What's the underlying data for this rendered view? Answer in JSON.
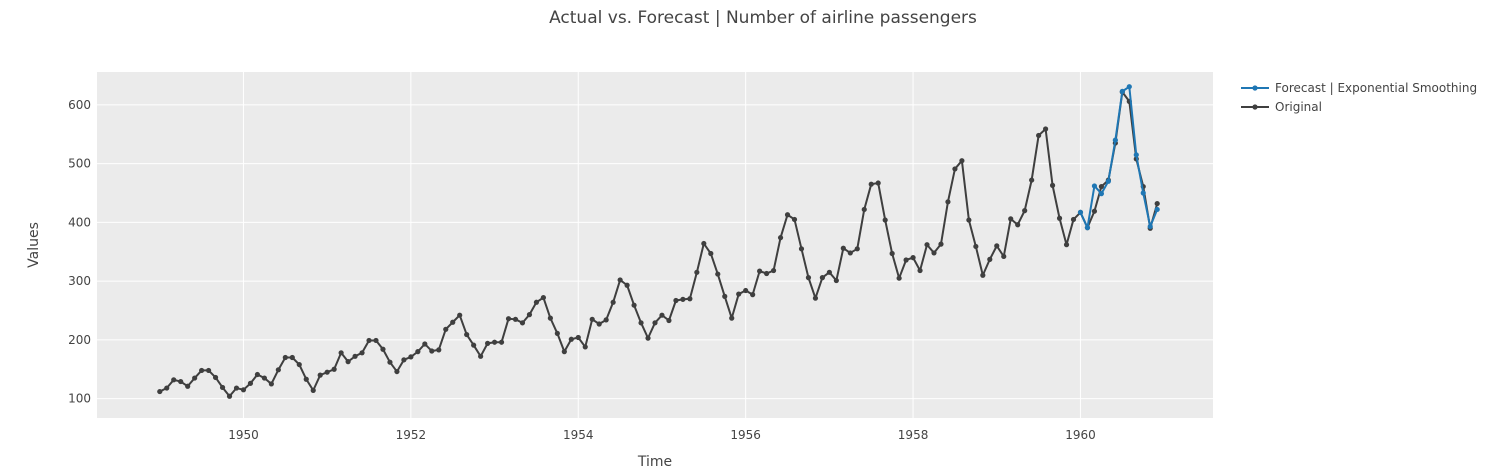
{
  "chart_data": {
    "type": "line",
    "title": "Actual vs. Forecast | Number of airline passengers",
    "xlabel": "Time",
    "ylabel": "Values",
    "x_start": "1949-01",
    "x_ticks": [
      "1950",
      "1952",
      "1954",
      "1956",
      "1958",
      "1960"
    ],
    "y_ticks": [
      "100",
      "200",
      "300",
      "400",
      "500",
      "600"
    ],
    "xlim": [
      "1948-04",
      "1961-08"
    ],
    "ylim": [
      67,
      656
    ],
    "grid": true,
    "legend_position": "top-right, outside plot",
    "plot_background": "#ebebeb",
    "series": [
      {
        "name": "Forecast | Exponential Smoothing",
        "color": "#1f77b4",
        "x": [
          "1960-01",
          "1960-02",
          "1960-03",
          "1960-04",
          "1960-05",
          "1960-06",
          "1960-07",
          "1960-08",
          "1960-09",
          "1960-10",
          "1960-11",
          "1960-12"
        ],
        "values": [
          417,
          391,
          462,
          449,
          470,
          540,
          623,
          631,
          515,
          450,
          393,
          422
        ]
      },
      {
        "name": "Original",
        "color": "#3f3f3f",
        "x_start": "1949-01",
        "values": [
          112,
          118,
          132,
          129,
          121,
          135,
          148,
          148,
          136,
          119,
          104,
          118,
          115,
          126,
          141,
          135,
          125,
          149,
          170,
          170,
          158,
          133,
          114,
          140,
          145,
          150,
          178,
          163,
          172,
          178,
          199,
          199,
          184,
          162,
          146,
          166,
          171,
          180,
          193,
          181,
          183,
          218,
          230,
          242,
          209,
          191,
          172,
          194,
          196,
          196,
          236,
          235,
          229,
          243,
          264,
          272,
          237,
          211,
          180,
          201,
          204,
          188,
          235,
          227,
          234,
          264,
          302,
          293,
          259,
          229,
          203,
          229,
          242,
          233,
          267,
          269,
          270,
          315,
          364,
          347,
          312,
          274,
          237,
          278,
          284,
          277,
          317,
          313,
          318,
          374,
          413,
          405,
          355,
          306,
          271,
          306,
          315,
          301,
          356,
          348,
          355,
          422,
          465,
          467,
          404,
          347,
          305,
          336,
          340,
          318,
          362,
          348,
          363,
          435,
          491,
          505,
          404,
          359,
          310,
          337,
          360,
          342,
          406,
          396,
          420,
          472,
          548,
          559,
          463,
          407,
          362,
          405,
          417,
          391,
          419,
          461,
          472,
          535,
          622,
          606,
          508,
          461,
          390,
          432
        ]
      }
    ]
  }
}
